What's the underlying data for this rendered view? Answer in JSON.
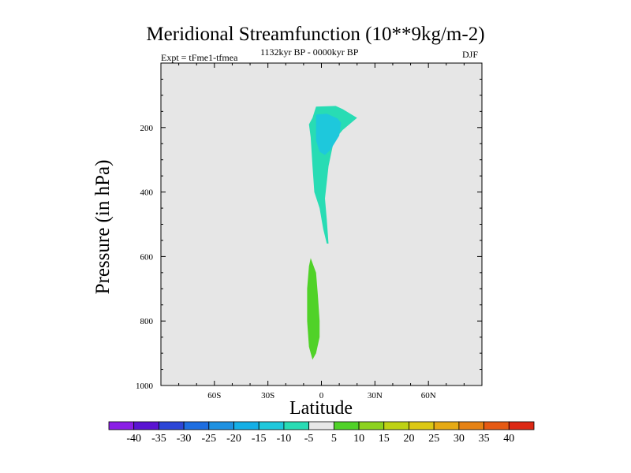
{
  "chart_data": {
    "type": "contour",
    "title": "Meridional Streamfunction (10**9kg/m-2)",
    "experiment": "Expt = tFme1-tfmea",
    "period": "1132kyr BP - 0000kyr BP",
    "season": "DJF",
    "xlabel": "Latitude",
    "ylabel": "Pressure (in hPa)",
    "xlim": [
      -90,
      90
    ],
    "ylim": [
      1000,
      0
    ],
    "x_ticks": [
      -60,
      -30,
      0,
      30,
      60
    ],
    "x_tick_labels": [
      "60S",
      "30S",
      "0",
      "30N",
      "60N"
    ],
    "y_ticks": [
      200,
      400,
      600,
      800,
      1000
    ],
    "y_tick_labels": [
      "200",
      "400",
      "600",
      "800",
      "1000"
    ],
    "colorbar": {
      "labels": [
        "-40",
        "-35",
        "-30",
        "-25",
        "-20",
        "-15",
        "-10",
        "-5",
        "5",
        "10",
        "15",
        "20",
        "25",
        "30",
        "35",
        "40"
      ],
      "colors": [
        "#8a1ee6",
        "#5a14d2",
        "#2d46d7",
        "#1e6ee1",
        "#1e91e1",
        "#14afe6",
        "#1ec8dc",
        "#28dcb4",
        "#e8e8e8",
        "#50d228",
        "#8cd21e",
        "#bed214",
        "#dcc814",
        "#e6aa14",
        "#e68214",
        "#e65a14",
        "#dc2814"
      ]
    },
    "regions": [
      {
        "name": "upper-negative-cell",
        "value_range": [
          -10,
          -5
        ],
        "color": "#28dcb4",
        "outline": [
          [
            -5,
            170
          ],
          [
            -3,
            135
          ],
          [
            8,
            133
          ],
          [
            12,
            143
          ],
          [
            20,
            170
          ],
          [
            12,
            207
          ],
          [
            7,
            240
          ],
          [
            4,
            320
          ],
          [
            2,
            420
          ],
          [
            3,
            485
          ],
          [
            4,
            560
          ],
          [
            3,
            560
          ],
          [
            1,
            515
          ],
          [
            -1,
            450
          ],
          [
            -4,
            400
          ],
          [
            -5,
            320
          ],
          [
            -6,
            230
          ],
          [
            -7,
            190
          ]
        ]
      },
      {
        "name": "upper-core",
        "value_range": [
          -15,
          -10
        ],
        "color": "#1ec8dc",
        "outline": [
          [
            -3,
            160
          ],
          [
            3,
            157
          ],
          [
            9,
            172
          ],
          [
            11,
            185
          ],
          [
            10,
            225
          ],
          [
            5,
            270
          ],
          [
            2,
            285
          ],
          [
            -1,
            275
          ],
          [
            -3,
            240
          ],
          [
            -3,
            190
          ]
        ]
      },
      {
        "name": "lower-positive-cell",
        "value_range": [
          5,
          10
        ],
        "color": "#50d228",
        "outline": [
          [
            -6,
            605
          ],
          [
            -3,
            650
          ],
          [
            -2,
            720
          ],
          [
            -1,
            800
          ],
          [
            -1,
            850
          ],
          [
            -3,
            900
          ],
          [
            -5,
            920
          ],
          [
            -7,
            880
          ],
          [
            -8,
            800
          ],
          [
            -8,
            700
          ],
          [
            -7,
            630
          ]
        ]
      }
    ]
  }
}
